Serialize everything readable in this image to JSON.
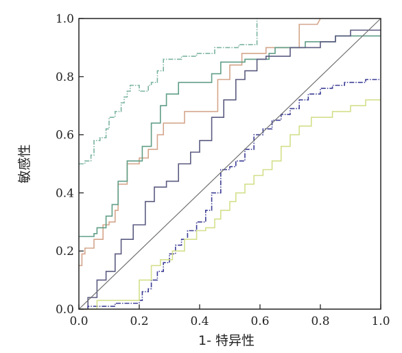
{
  "chart_data": {
    "type": "line",
    "title": "",
    "xlabel": "1- 特异性",
    "ylabel": "敏感性",
    "xlim": [
      0,
      1
    ],
    "ylim": [
      0,
      1
    ],
    "grid": false,
    "legend": "none",
    "x_ticks": [
      "0.0",
      "0.2",
      "0.4",
      "0.6",
      "0.8",
      "1.0"
    ],
    "y_ticks": [
      "0.0",
      "0.2",
      "0.4",
      "0.6",
      "0.8",
      "1.0"
    ],
    "reference_line": {
      "from": [
        0,
        0
      ],
      "to": [
        1,
        1
      ],
      "color": "#6e6e6e"
    },
    "series": [
      {
        "color": "#7ab3a0",
        "style": "dashdot",
        "points": [
          [
            0,
            0.5
          ],
          [
            0.02,
            0.5
          ],
          [
            0.02,
            0.51
          ],
          [
            0.04,
            0.51
          ],
          [
            0.04,
            0.53
          ],
          [
            0.05,
            0.53
          ],
          [
            0.05,
            0.58
          ],
          [
            0.07,
            0.58
          ],
          [
            0.07,
            0.59
          ],
          [
            0.09,
            0.59
          ],
          [
            0.09,
            0.62
          ],
          [
            0.1,
            0.62
          ],
          [
            0.1,
            0.66
          ],
          [
            0.12,
            0.66
          ],
          [
            0.12,
            0.68
          ],
          [
            0.14,
            0.68
          ],
          [
            0.14,
            0.71
          ],
          [
            0.15,
            0.71
          ],
          [
            0.15,
            0.73
          ],
          [
            0.16,
            0.73
          ],
          [
            0.16,
            0.75
          ],
          [
            0.17,
            0.75
          ],
          [
            0.17,
            0.77
          ],
          [
            0.2,
            0.77
          ],
          [
            0.2,
            0.75
          ],
          [
            0.23,
            0.75
          ],
          [
            0.23,
            0.77
          ],
          [
            0.24,
            0.77
          ],
          [
            0.24,
            0.78
          ],
          [
            0.26,
            0.78
          ],
          [
            0.26,
            0.82
          ],
          [
            0.28,
            0.82
          ],
          [
            0.28,
            0.86
          ],
          [
            0.34,
            0.86
          ],
          [
            0.34,
            0.87
          ],
          [
            0.39,
            0.87
          ],
          [
            0.39,
            0.88
          ],
          [
            0.45,
            0.88
          ],
          [
            0.45,
            0.9
          ],
          [
            0.53,
            0.9
          ],
          [
            0.53,
            0.91
          ],
          [
            0.59,
            0.91
          ],
          [
            0.59,
            1.0
          ]
        ]
      },
      {
        "color": "#d4a58b",
        "style": "solid",
        "points": [
          [
            0,
            0.15
          ],
          [
            0.01,
            0.15
          ],
          [
            0.01,
            0.19
          ],
          [
            0.02,
            0.19
          ],
          [
            0.02,
            0.21
          ],
          [
            0.05,
            0.21
          ],
          [
            0.05,
            0.24
          ],
          [
            0.08,
            0.24
          ],
          [
            0.08,
            0.29
          ],
          [
            0.1,
            0.29
          ],
          [
            0.1,
            0.3
          ],
          [
            0.12,
            0.3
          ],
          [
            0.12,
            0.34
          ],
          [
            0.13,
            0.34
          ],
          [
            0.13,
            0.43
          ],
          [
            0.16,
            0.43
          ],
          [
            0.16,
            0.5
          ],
          [
            0.2,
            0.5
          ],
          [
            0.2,
            0.52
          ],
          [
            0.23,
            0.52
          ],
          [
            0.23,
            0.55
          ],
          [
            0.26,
            0.55
          ],
          [
            0.26,
            0.6
          ],
          [
            0.28,
            0.6
          ],
          [
            0.28,
            0.64
          ],
          [
            0.35,
            0.64
          ],
          [
            0.35,
            0.68
          ],
          [
            0.46,
            0.68
          ],
          [
            0.46,
            0.79
          ],
          [
            0.5,
            0.79
          ],
          [
            0.5,
            0.84
          ],
          [
            0.54,
            0.84
          ],
          [
            0.54,
            0.88
          ],
          [
            0.62,
            0.88
          ],
          [
            0.62,
            0.9
          ],
          [
            0.73,
            0.9
          ],
          [
            0.73,
            0.93
          ],
          [
            0.73,
            0.98
          ],
          [
            0.79,
            0.98
          ],
          [
            0.8,
            1.0
          ]
        ]
      },
      {
        "color": "#5f9d86",
        "style": "solid",
        "points": [
          [
            0,
            0.25
          ],
          [
            0.05,
            0.25
          ],
          [
            0.05,
            0.26
          ],
          [
            0.06,
            0.26
          ],
          [
            0.06,
            0.28
          ],
          [
            0.09,
            0.28
          ],
          [
            0.09,
            0.32
          ],
          [
            0.11,
            0.32
          ],
          [
            0.11,
            0.36
          ],
          [
            0.13,
            0.36
          ],
          [
            0.13,
            0.44
          ],
          [
            0.16,
            0.44
          ],
          [
            0.16,
            0.51
          ],
          [
            0.21,
            0.51
          ],
          [
            0.21,
            0.56
          ],
          [
            0.24,
            0.56
          ],
          [
            0.24,
            0.64
          ],
          [
            0.27,
            0.64
          ],
          [
            0.27,
            0.7
          ],
          [
            0.29,
            0.7
          ],
          [
            0.29,
            0.74
          ],
          [
            0.33,
            0.74
          ],
          [
            0.33,
            0.78
          ],
          [
            0.44,
            0.78
          ],
          [
            0.44,
            0.81
          ],
          [
            0.47,
            0.81
          ],
          [
            0.47,
            0.85
          ],
          [
            0.55,
            0.85
          ],
          [
            0.55,
            0.86
          ],
          [
            0.63,
            0.86
          ],
          [
            0.63,
            0.88
          ],
          [
            0.65,
            0.88
          ],
          [
            0.65,
            0.9
          ],
          [
            0.75,
            0.9
          ],
          [
            0.75,
            0.92
          ],
          [
            0.85,
            0.92
          ],
          [
            0.85,
            0.94
          ],
          [
            1.0,
            0.94
          ]
        ]
      },
      {
        "color": "#5a5a80",
        "style": "solid",
        "points": [
          [
            0,
            0
          ],
          [
            0.03,
            0
          ],
          [
            0.03,
            0.04
          ],
          [
            0.06,
            0.04
          ],
          [
            0.06,
            0.1
          ],
          [
            0.09,
            0.1
          ],
          [
            0.09,
            0.13
          ],
          [
            0.12,
            0.13
          ],
          [
            0.12,
            0.19
          ],
          [
            0.14,
            0.19
          ],
          [
            0.14,
            0.24
          ],
          [
            0.18,
            0.24
          ],
          [
            0.18,
            0.29
          ],
          [
            0.22,
            0.29
          ],
          [
            0.22,
            0.37
          ],
          [
            0.25,
            0.37
          ],
          [
            0.25,
            0.42
          ],
          [
            0.29,
            0.42
          ],
          [
            0.29,
            0.44
          ],
          [
            0.33,
            0.44
          ],
          [
            0.33,
            0.5
          ],
          [
            0.37,
            0.5
          ],
          [
            0.37,
            0.54
          ],
          [
            0.4,
            0.54
          ],
          [
            0.4,
            0.58
          ],
          [
            0.44,
            0.58
          ],
          [
            0.44,
            0.66
          ],
          [
            0.48,
            0.66
          ],
          [
            0.48,
            0.72
          ],
          [
            0.52,
            0.72
          ],
          [
            0.52,
            0.79
          ],
          [
            0.55,
            0.79
          ],
          [
            0.55,
            0.82
          ],
          [
            0.59,
            0.82
          ],
          [
            0.59,
            0.86
          ],
          [
            0.62,
            0.86
          ],
          [
            0.62,
            0.87
          ],
          [
            0.7,
            0.87
          ],
          [
            0.7,
            0.9
          ],
          [
            0.8,
            0.9
          ],
          [
            0.8,
            0.92
          ],
          [
            0.85,
            0.92
          ],
          [
            0.85,
            0.94
          ],
          [
            0.9,
            0.94
          ],
          [
            0.9,
            0.96
          ],
          [
            1.0,
            0.96
          ]
        ]
      },
      {
        "color": "#3b3d94",
        "style": "dashdot",
        "points": [
          [
            0,
            0
          ],
          [
            0.03,
            0
          ],
          [
            0.03,
            0.01
          ],
          [
            0.12,
            0.01
          ],
          [
            0.12,
            0.02
          ],
          [
            0.2,
            0.02
          ],
          [
            0.2,
            0.03
          ],
          [
            0.21,
            0.03
          ],
          [
            0.21,
            0.06
          ],
          [
            0.23,
            0.06
          ],
          [
            0.23,
            0.07
          ],
          [
            0.24,
            0.07
          ],
          [
            0.24,
            0.1
          ],
          [
            0.26,
            0.1
          ],
          [
            0.26,
            0.13
          ],
          [
            0.28,
            0.13
          ],
          [
            0.28,
            0.16
          ],
          [
            0.3,
            0.16
          ],
          [
            0.3,
            0.19
          ],
          [
            0.32,
            0.19
          ],
          [
            0.32,
            0.22
          ],
          [
            0.34,
            0.22
          ],
          [
            0.34,
            0.24
          ],
          [
            0.36,
            0.24
          ],
          [
            0.36,
            0.27
          ],
          [
            0.39,
            0.27
          ],
          [
            0.39,
            0.3
          ],
          [
            0.42,
            0.3
          ],
          [
            0.42,
            0.34
          ],
          [
            0.44,
            0.34
          ],
          [
            0.44,
            0.4
          ],
          [
            0.47,
            0.4
          ],
          [
            0.47,
            0.48
          ],
          [
            0.5,
            0.48
          ],
          [
            0.5,
            0.49
          ],
          [
            0.52,
            0.49
          ],
          [
            0.52,
            0.51
          ],
          [
            0.55,
            0.51
          ],
          [
            0.55,
            0.55
          ],
          [
            0.58,
            0.55
          ],
          [
            0.58,
            0.6
          ],
          [
            0.61,
            0.6
          ],
          [
            0.61,
            0.62
          ],
          [
            0.64,
            0.62
          ],
          [
            0.64,
            0.65
          ],
          [
            0.67,
            0.65
          ],
          [
            0.67,
            0.67
          ],
          [
            0.7,
            0.67
          ],
          [
            0.7,
            0.69
          ],
          [
            0.73,
            0.69
          ],
          [
            0.73,
            0.72
          ],
          [
            0.76,
            0.72
          ],
          [
            0.76,
            0.74
          ],
          [
            0.8,
            0.74
          ],
          [
            0.8,
            0.76
          ],
          [
            0.84,
            0.76
          ],
          [
            0.84,
            0.77
          ],
          [
            0.88,
            0.77
          ],
          [
            0.88,
            0.78
          ],
          [
            0.95,
            0.78
          ],
          [
            0.95,
            0.79
          ],
          [
            1.0,
            0.79
          ]
        ]
      },
      {
        "color": "#d4df8a",
        "style": "solid",
        "points": [
          [
            0,
            0
          ],
          [
            0.06,
            0
          ],
          [
            0.06,
            0.03
          ],
          [
            0.2,
            0.03
          ],
          [
            0.2,
            0.1
          ],
          [
            0.24,
            0.1
          ],
          [
            0.24,
            0.15
          ],
          [
            0.27,
            0.15
          ],
          [
            0.27,
            0.17
          ],
          [
            0.31,
            0.17
          ],
          [
            0.31,
            0.2
          ],
          [
            0.35,
            0.2
          ],
          [
            0.35,
            0.24
          ],
          [
            0.39,
            0.24
          ],
          [
            0.39,
            0.27
          ],
          [
            0.42,
            0.27
          ],
          [
            0.42,
            0.28
          ],
          [
            0.45,
            0.28
          ],
          [
            0.45,
            0.31
          ],
          [
            0.47,
            0.31
          ],
          [
            0.47,
            0.34
          ],
          [
            0.5,
            0.34
          ],
          [
            0.5,
            0.37
          ],
          [
            0.52,
            0.37
          ],
          [
            0.52,
            0.4
          ],
          [
            0.55,
            0.4
          ],
          [
            0.55,
            0.43
          ],
          [
            0.58,
            0.43
          ],
          [
            0.58,
            0.46
          ],
          [
            0.61,
            0.46
          ],
          [
            0.61,
            0.48
          ],
          [
            0.64,
            0.48
          ],
          [
            0.64,
            0.51
          ],
          [
            0.67,
            0.51
          ],
          [
            0.67,
            0.56
          ],
          [
            0.7,
            0.56
          ],
          [
            0.7,
            0.6
          ],
          [
            0.73,
            0.6
          ],
          [
            0.73,
            0.63
          ],
          [
            0.77,
            0.63
          ],
          [
            0.77,
            0.66
          ],
          [
            0.84,
            0.66
          ],
          [
            0.84,
            0.68
          ],
          [
            0.9,
            0.68
          ],
          [
            0.9,
            0.7
          ],
          [
            0.95,
            0.7
          ],
          [
            0.95,
            0.72
          ],
          [
            1.0,
            0.72
          ]
        ]
      }
    ]
  }
}
